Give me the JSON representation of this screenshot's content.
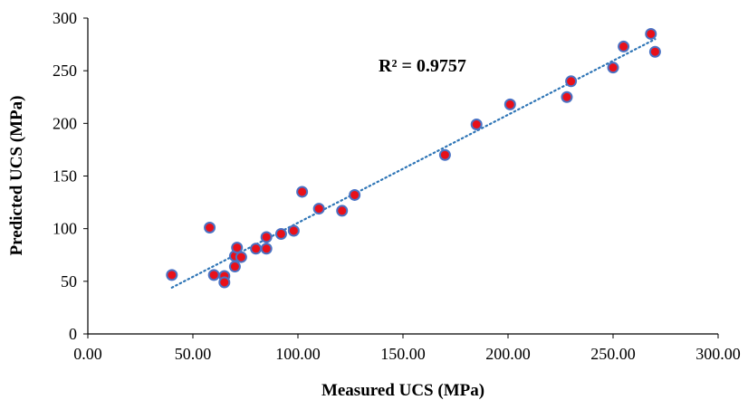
{
  "chart_data": {
    "type": "scatter",
    "xlabel": "Measured UCS (MPa)",
    "ylabel": "Predicted UCS (MPa)",
    "xlim": [
      0,
      300
    ],
    "ylim": [
      0,
      300
    ],
    "xticks": [
      "0.00",
      "50.00",
      "100.00",
      "150.00",
      "200.00",
      "250.00",
      "300.00"
    ],
    "yticks": [
      "0",
      "50",
      "100",
      "150",
      "200",
      "250",
      "300"
    ],
    "grid": false,
    "legend": "none",
    "annotation": "R² = 0.9757",
    "trendline": {
      "type": "linear",
      "style": "dotted",
      "x_range": [
        40,
        270
      ],
      "y_at_start": 44,
      "y_at_end": 280
    },
    "marker_fill": "#e8101a",
    "marker_edge": "#4a72c4",
    "trendline_color": "#2e75b6",
    "points": [
      {
        "x": 40,
        "y": 56
      },
      {
        "x": 58,
        "y": 101
      },
      {
        "x": 60,
        "y": 56
      },
      {
        "x": 65,
        "y": 55
      },
      {
        "x": 65,
        "y": 49
      },
      {
        "x": 70,
        "y": 64
      },
      {
        "x": 70,
        "y": 74
      },
      {
        "x": 71,
        "y": 82
      },
      {
        "x": 73,
        "y": 73
      },
      {
        "x": 80,
        "y": 81
      },
      {
        "x": 85,
        "y": 92
      },
      {
        "x": 85,
        "y": 81
      },
      {
        "x": 92,
        "y": 95
      },
      {
        "x": 98,
        "y": 98
      },
      {
        "x": 102,
        "y": 135
      },
      {
        "x": 110,
        "y": 119
      },
      {
        "x": 121,
        "y": 117
      },
      {
        "x": 127,
        "y": 132
      },
      {
        "x": 170,
        "y": 170
      },
      {
        "x": 185,
        "y": 199
      },
      {
        "x": 201,
        "y": 218
      },
      {
        "x": 228,
        "y": 225
      },
      {
        "x": 230,
        "y": 240
      },
      {
        "x": 250,
        "y": 253
      },
      {
        "x": 255,
        "y": 273
      },
      {
        "x": 268,
        "y": 285
      },
      {
        "x": 270,
        "y": 268
      }
    ]
  }
}
